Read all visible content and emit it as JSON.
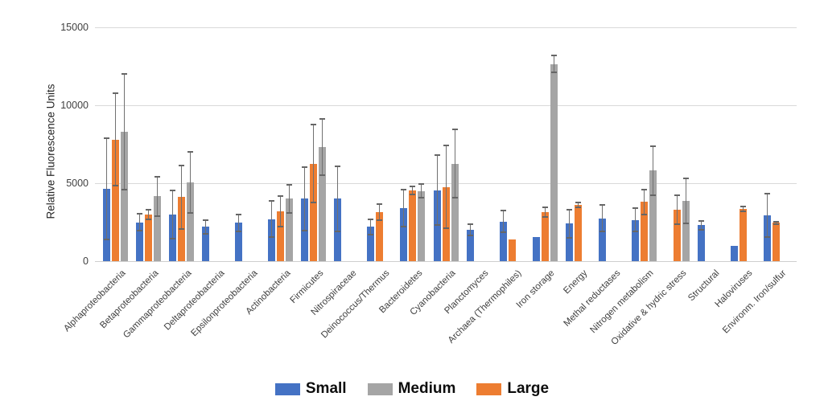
{
  "chart_data": {
    "type": "bar",
    "ylabel": "Relative Fluorescence Units",
    "ylim": [
      0,
      15000
    ],
    "yticks": [
      0,
      5000,
      10000,
      15000
    ],
    "grid": true,
    "legend_position": "bottom",
    "categories": [
      "Alphaproteobacteria",
      "Betaproteobacteria",
      "Gammaproteobacteria",
      "Deltaproteobacteria",
      "Epsilonproteobacteria",
      "Actinobacteria",
      "Firmicutes",
      "Nitrospiraceae",
      "Deinococcus/Thermus",
      "Bacteroidetes",
      "Cyanobacteria",
      "Planctomyces",
      "Archaea (Thermophiles)",
      "Iron storage",
      "Energy",
      "Methal reductases",
      "Nitrogen metabolism",
      "Oxidative & hydric stress",
      "Structural",
      "Haloviruses",
      "Environm. Iron/sulfur"
    ],
    "series": [
      {
        "name": "Small",
        "color": "#4472C4",
        "values": [
          4650,
          2500,
          3000,
          2200,
          2450,
          2700,
          4000,
          4000,
          2200,
          3400,
          4550,
          2000,
          2550,
          1550,
          2400,
          2750,
          2650,
          null,
          2300,
          1000,
          2950
        ],
        "errors": [
          3250,
          550,
          1550,
          450,
          550,
          1150,
          2050,
          2100,
          500,
          1200,
          2250,
          350,
          700,
          null,
          900,
          850,
          750,
          null,
          300,
          null,
          1400
        ]
      },
      {
        "name": "Large",
        "color": "#ED7D31",
        "values": [
          7800,
          3000,
          4100,
          null,
          null,
          3200,
          6250,
          null,
          3150,
          4550,
          4750,
          null,
          1400,
          3150,
          3600,
          null,
          3800,
          3300,
          null,
          3350,
          2450
        ],
        "errors": [
          2950,
          300,
          2050,
          null,
          null,
          1000,
          2500,
          null,
          500,
          250,
          2650,
          null,
          null,
          300,
          150,
          null,
          800,
          950,
          null,
          150,
          100
        ]
      },
      {
        "name": "Medium",
        "color": "#A5A5A5",
        "values": [
          8300,
          4150,
          5050,
          null,
          null,
          4000,
          7300,
          null,
          null,
          4500,
          6250,
          null,
          null,
          12650,
          null,
          null,
          5800,
          3850,
          null,
          null,
          null
        ],
        "errors": [
          3700,
          1250,
          1950,
          null,
          null,
          900,
          1800,
          null,
          null,
          430,
          2200,
          null,
          null,
          550,
          null,
          null,
          1550,
          1450,
          null,
          null,
          null
        ]
      }
    ],
    "legend": [
      {
        "label": "Small",
        "color": "#4472C4"
      },
      {
        "label": "Medium",
        "color": "#A5A5A5"
      },
      {
        "label": "Large",
        "color": "#ED7D31"
      }
    ]
  }
}
